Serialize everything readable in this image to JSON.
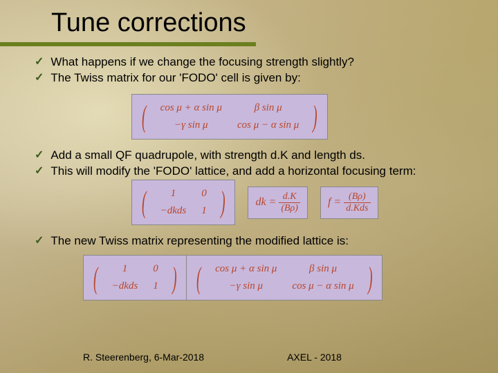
{
  "title": "Tune corrections",
  "bullets": {
    "b1": "What happens if we change the focusing strength slightly?",
    "b2": "The Twiss matrix for our 'FODO' cell is given by:",
    "b3": "Add a small QF quadrupole, with strength d.K and length ds.",
    "b4": "This will modify the 'FODO' lattice, and add a horizontal focusing term:",
    "b5": "The new Twiss matrix representing the modified lattice is:"
  },
  "matrix1": {
    "r1c1": "cos μ + α sin μ",
    "r1c2": "β sin μ",
    "r2c1": "−γ sin μ",
    "r2c2": "cos μ − α sin μ"
  },
  "matrix2a": {
    "r1c1": "1",
    "r1c2": "0",
    "r2c1": "−dkds",
    "r2c2": "1"
  },
  "eq_dk_lhs": "dk =",
  "eq_dk_num": "d.K",
  "eq_dk_den": "(Bρ)",
  "eq_f_lhs": "f =",
  "eq_f_num": "(Bρ)",
  "eq_f_den": "d.Kds",
  "footer": {
    "left": "R. Steerenberg, 6-Mar-2018",
    "right": "AXEL - 2018"
  },
  "colors": {
    "accent_line": "#6b7f1f",
    "matrix_bg": "#c8b8dc",
    "math_text": "#b8462a",
    "check": "#3a5a1a"
  }
}
